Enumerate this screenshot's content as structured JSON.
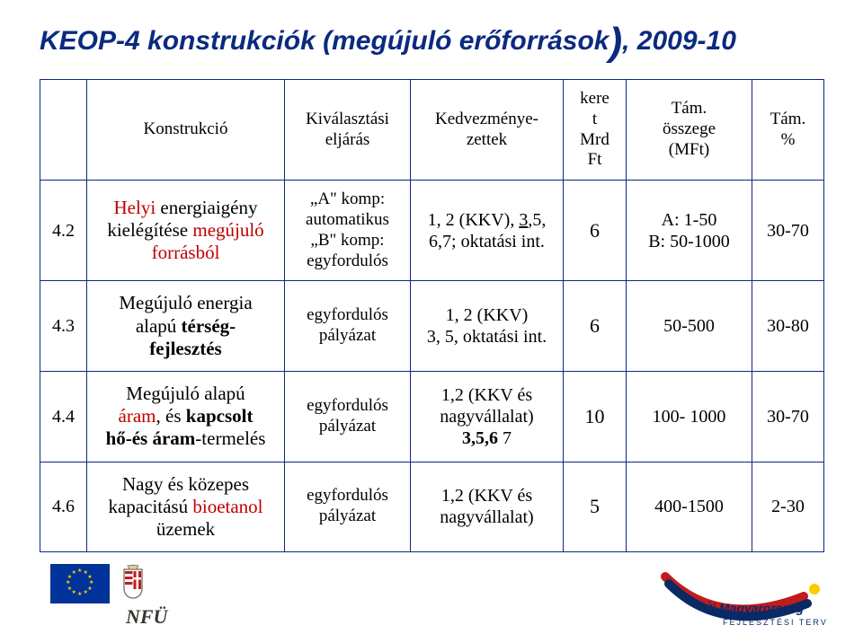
{
  "colors": {
    "title": "#0b2a80",
    "border": "#0b2a80",
    "red": "#c00000",
    "background": "#ffffff",
    "eu_blue": "#003399",
    "eu_star": "#ffcc00",
    "umft_blue": "#0a2a66",
    "umft_red": "#c21b1e",
    "nfu_text": "#3a3530"
  },
  "title": {
    "pre": "KEOP-4 konstrukciók (megújuló erőforrások",
    "paren": ")",
    "post": ", 2009-10"
  },
  "table": {
    "headers": {
      "c0": "",
      "c1": "Konstrukció",
      "c2": "Kiválasztási eljárás",
      "c3": "Kedvezménye-zettek",
      "c4_line1": "kere",
      "c4_line2": "t",
      "c4_line3": "Mrd",
      "c4_line4": "Ft",
      "c5_line1": "Tám.",
      "c5_line2": "összege",
      "c5_line3": "(MFt)",
      "c6_line1": "Tám.",
      "c6_line2": "%"
    },
    "rows": [
      {
        "num": "4.2",
        "construct": {
          "lines": [
            {
              "t": "Helyi ",
              "red": true
            },
            {
              "t": "energiaigény kielégítése ",
              "red": false
            },
            {
              "t": "megújuló forrásból",
              "red": true
            }
          ],
          "note": "Helyi energiaigény kielégítése megújuló forrásból"
        },
        "eljaras_lines": [
          "„A\" komp:",
          "automatikus",
          "„B\" komp:",
          "egyfordulós"
        ],
        "kedv_lines": [
          "1, 2 (KKV), 3,5,",
          "6,7; oktatási int."
        ],
        "kedv_underline_idx": [
          0
        ],
        "keret": "6",
        "tam_lines": [
          "A: 1-50",
          "B: 50-1000"
        ],
        "pct": "30-70"
      },
      {
        "num": "4.3",
        "construct": {
          "note": "Megújuló energia alapú térség-fejlesztés"
        },
        "eljaras_lines": [
          "egyfordulós",
          "pályázat"
        ],
        "kedv_lines": [
          "1, 2 (KKV)",
          "3, 5, oktatási int."
        ],
        "keret": "6",
        "tam_lines": [
          "50-500"
        ],
        "pct": "30-80"
      },
      {
        "num": "4.4",
        "construct": {
          "note": "Megújuló alapú áram, és kapcsolt hő-és áram-termelés"
        },
        "eljaras_lines": [
          "egyfordulós",
          "pályázat"
        ],
        "kedv_lines": [
          "1,2 (KKV és",
          "nagyvállalat)",
          "3,5,6 7"
        ],
        "keret": "10",
        "tam_lines": [
          "100- 1000"
        ],
        "pct": "30-70"
      },
      {
        "num": "4.6",
        "construct": {
          "note": "Nagy és közepes kapacitású bioetanol üzemek"
        },
        "eljaras_lines": [
          "egyfordulós",
          "pályázat"
        ],
        "kedv_lines": [
          "1,2 (KKV és",
          "nagyvállalat)"
        ],
        "keret": "5",
        "tam_lines": [
          "400-1500"
        ],
        "pct": "2-30"
      }
    ]
  },
  "footer": {
    "nfu": "NFÜ",
    "umft_line1": "Új Magyarország",
    "umft_line2": "FEJLESZTÉSI TERV"
  }
}
